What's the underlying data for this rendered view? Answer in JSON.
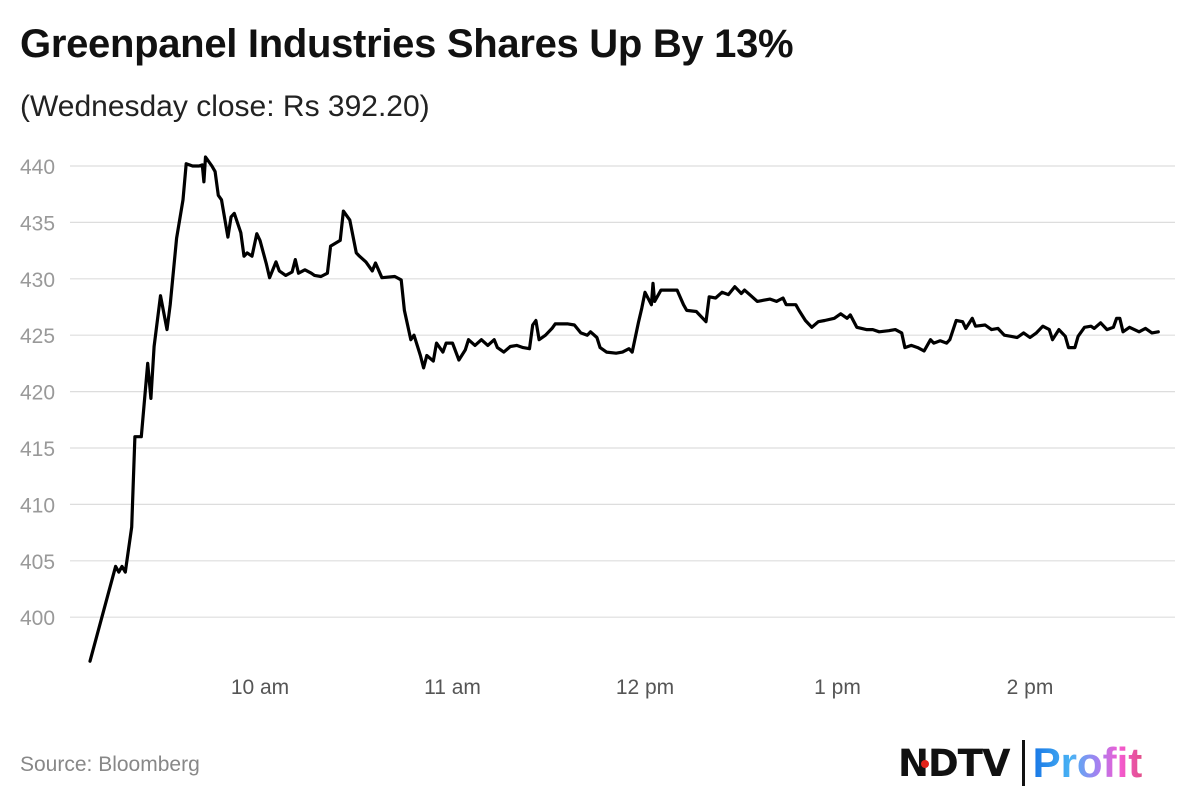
{
  "chart_data": {
    "type": "line",
    "title": "Greenpanel Industries Shares Up By 13%",
    "subtitle": "(Wednesday close: Rs 392.20)",
    "source": "Source: Bloomberg",
    "xlabel": "",
    "ylabel": "",
    "y_ticks": [
      400,
      405,
      410,
      415,
      420,
      425,
      430,
      435,
      440
    ],
    "x_ticks": [
      {
        "time": "10:00",
        "label": "10 am"
      },
      {
        "time": "11:00",
        "label": "11 am"
      },
      {
        "time": "12:00",
        "label": "12 pm"
      },
      {
        "time": "13:00",
        "label": "1 pm"
      },
      {
        "time": "14:00",
        "label": "2 pm"
      }
    ],
    "grid": true,
    "line_color": "#000000",
    "grid_color": "#dddddd",
    "series": [
      {
        "x": [
          "09:07",
          "09:15",
          "09:16",
          "09:17",
          "09:18",
          "09:20",
          "09:21",
          "09:23",
          "09:25",
          "09:26",
          "09:27",
          "09:29",
          "09:31",
          "09:32",
          "09:34",
          "09:36",
          "09:37",
          "09:39",
          "09:41",
          "09:42",
          "09:42.5",
          "09:43",
          "09:45",
          "09:46",
          "09:47",
          "09:48",
          "09:50",
          "09:51",
          "09:52",
          "09:54",
          "09:55",
          "09:56",
          "09:57.5",
          "09:59",
          "10:00",
          "10:02",
          "10:03",
          "10:05",
          "10:06",
          "10:08",
          "10:10",
          "10:11",
          "10:12",
          "10:14",
          "10:16",
          "10:17",
          "10:19",
          "10:21",
          "10:22",
          "10:25",
          "10:26",
          "10:28",
          "10:30",
          "10:31",
          "10:33",
          "10:35",
          "10:36",
          "10:38",
          "10:42",
          "10:44",
          "10:45",
          "10:47",
          "10:48",
          "10:50",
          "10:51",
          "10:52",
          "10:54",
          "10:55",
          "10:57",
          "10:58",
          "11:00",
          "11:02",
          "11:04",
          "11:05",
          "11:07",
          "11:09",
          "11:11",
          "11:13",
          "11:14",
          "11:16",
          "11:18",
          "11:20",
          "11:22",
          "11:24",
          "11:25",
          "11:26",
          "11:27",
          "11:29",
          "11:31",
          "11:32",
          "11:36",
          "11:38",
          "11:40",
          "11:42",
          "11:43",
          "11:45",
          "11:46",
          "11:48",
          "11:51",
          "11:53",
          "11:55",
          "11:56",
          "11:58",
          "11:59",
          "12:00",
          "12:02",
          "12:02.5",
          "12:03",
          "12:05",
          "12:07",
          "12:10",
          "12:12",
          "12:13",
          "12:16",
          "12:17",
          "12:19",
          "12:20",
          "12:22",
          "12:24",
          "12:26",
          "12:28",
          "12:30",
          "12:31",
          "12:33",
          "12:35",
          "12:37",
          "12:39",
          "12:41",
          "12:43",
          "12:44",
          "12:47",
          "12:48",
          "12:50",
          "12:52",
          "12:54",
          "12:56",
          "12:59",
          "13:01",
          "13:03",
          "13:04",
          "13:06",
          "13:09",
          "13:11",
          "13:13",
          "13:16",
          "13:18",
          "13:20",
          "13:21",
          "13:23",
          "13:25",
          "13:27",
          "13:29",
          "13:30",
          "13:32",
          "13:34",
          "13:35",
          "13:37",
          "13:39",
          "13:40",
          "13:42",
          "13:43",
          "13:46",
          "13:48",
          "13:50",
          "13:52",
          "13:54",
          "13:56",
          "13:58",
          "14:00",
          "14:02",
          "14:04",
          "14:06",
          "14:07",
          "14:09",
          "14:11",
          "14:12",
          "14:14",
          "14:15",
          "14:17",
          "14:19",
          "14:20",
          "14:22",
          "14:24",
          "14:26",
          "14:27",
          "14:28",
          "14:29",
          "14:31",
          "14:34",
          "14:36",
          "14:38",
          "14:40"
        ],
        "values": [
          396.1,
          404.5,
          404.0,
          404.5,
          404.0,
          408,
          416,
          416,
          422.5,
          419.4,
          424,
          428.5,
          425.5,
          427.7,
          433.6,
          437,
          440.2,
          440,
          440,
          440.1,
          438.6,
          440.8,
          440,
          439.5,
          437.4,
          437,
          433.7,
          435.5,
          435.8,
          434.1,
          432,
          432.3,
          432,
          434,
          433.4,
          431.3,
          430.1,
          431.5,
          430.7,
          430.3,
          430.6,
          431.7,
          430.5,
          430.8,
          430.5,
          430.3,
          430.2,
          430.5,
          432.9,
          433.4,
          436,
          435.2,
          432.3,
          432,
          431.5,
          430.7,
          431.4,
          430.1,
          430.2,
          429.9,
          427.2,
          424.6,
          425,
          423.2,
          422.1,
          423.2,
          422.7,
          424.3,
          423.5,
          424.3,
          424.3,
          422.8,
          423.7,
          424.6,
          424.1,
          424.6,
          424.1,
          424.6,
          423.9,
          423.5,
          424,
          424.1,
          423.9,
          423.8,
          425.9,
          426.3,
          424.6,
          425,
          425.6,
          426,
          426,
          425.9,
          425.2,
          425,
          425.3,
          424.8,
          423.9,
          423.5,
          423.4,
          423.5,
          423.8,
          423.5,
          426.2,
          427.4,
          428.8,
          427.7,
          429.6,
          428,
          429,
          429,
          429,
          427.7,
          427.2,
          427.1,
          426.8,
          426.2,
          428.4,
          428.3,
          428.8,
          428.6,
          429.3,
          428.7,
          429,
          428.5,
          428,
          428.1,
          428.2,
          428,
          428.3,
          427.7,
          427.7,
          427.2,
          426.3,
          425.7,
          426.2,
          426.3,
          426.5,
          426.9,
          426.5,
          426.8,
          425.7,
          425.5,
          425.5,
          425.3,
          425.4,
          425.5,
          425.2,
          423.9,
          424.1,
          423.9,
          423.6,
          424.6,
          424.3,
          424.5,
          424.3,
          424.6,
          426.3,
          426.2,
          425.6,
          426.5,
          425.8,
          425.9,
          425.5,
          425.6,
          425,
          424.9,
          424.8,
          425.2,
          424.8,
          425.2,
          425.8,
          425.5,
          424.6,
          425.5,
          424.9,
          423.9,
          423.9,
          424.9,
          425.7,
          425.8,
          425.6,
          426.1,
          425.5,
          425.7,
          426.5,
          426.5,
          425.3,
          425.7,
          425.3,
          425.6,
          425.2,
          425.3
        ]
      }
    ]
  },
  "brand": {
    "logo_text": "NDTV",
    "logo_text2": "Profit"
  }
}
